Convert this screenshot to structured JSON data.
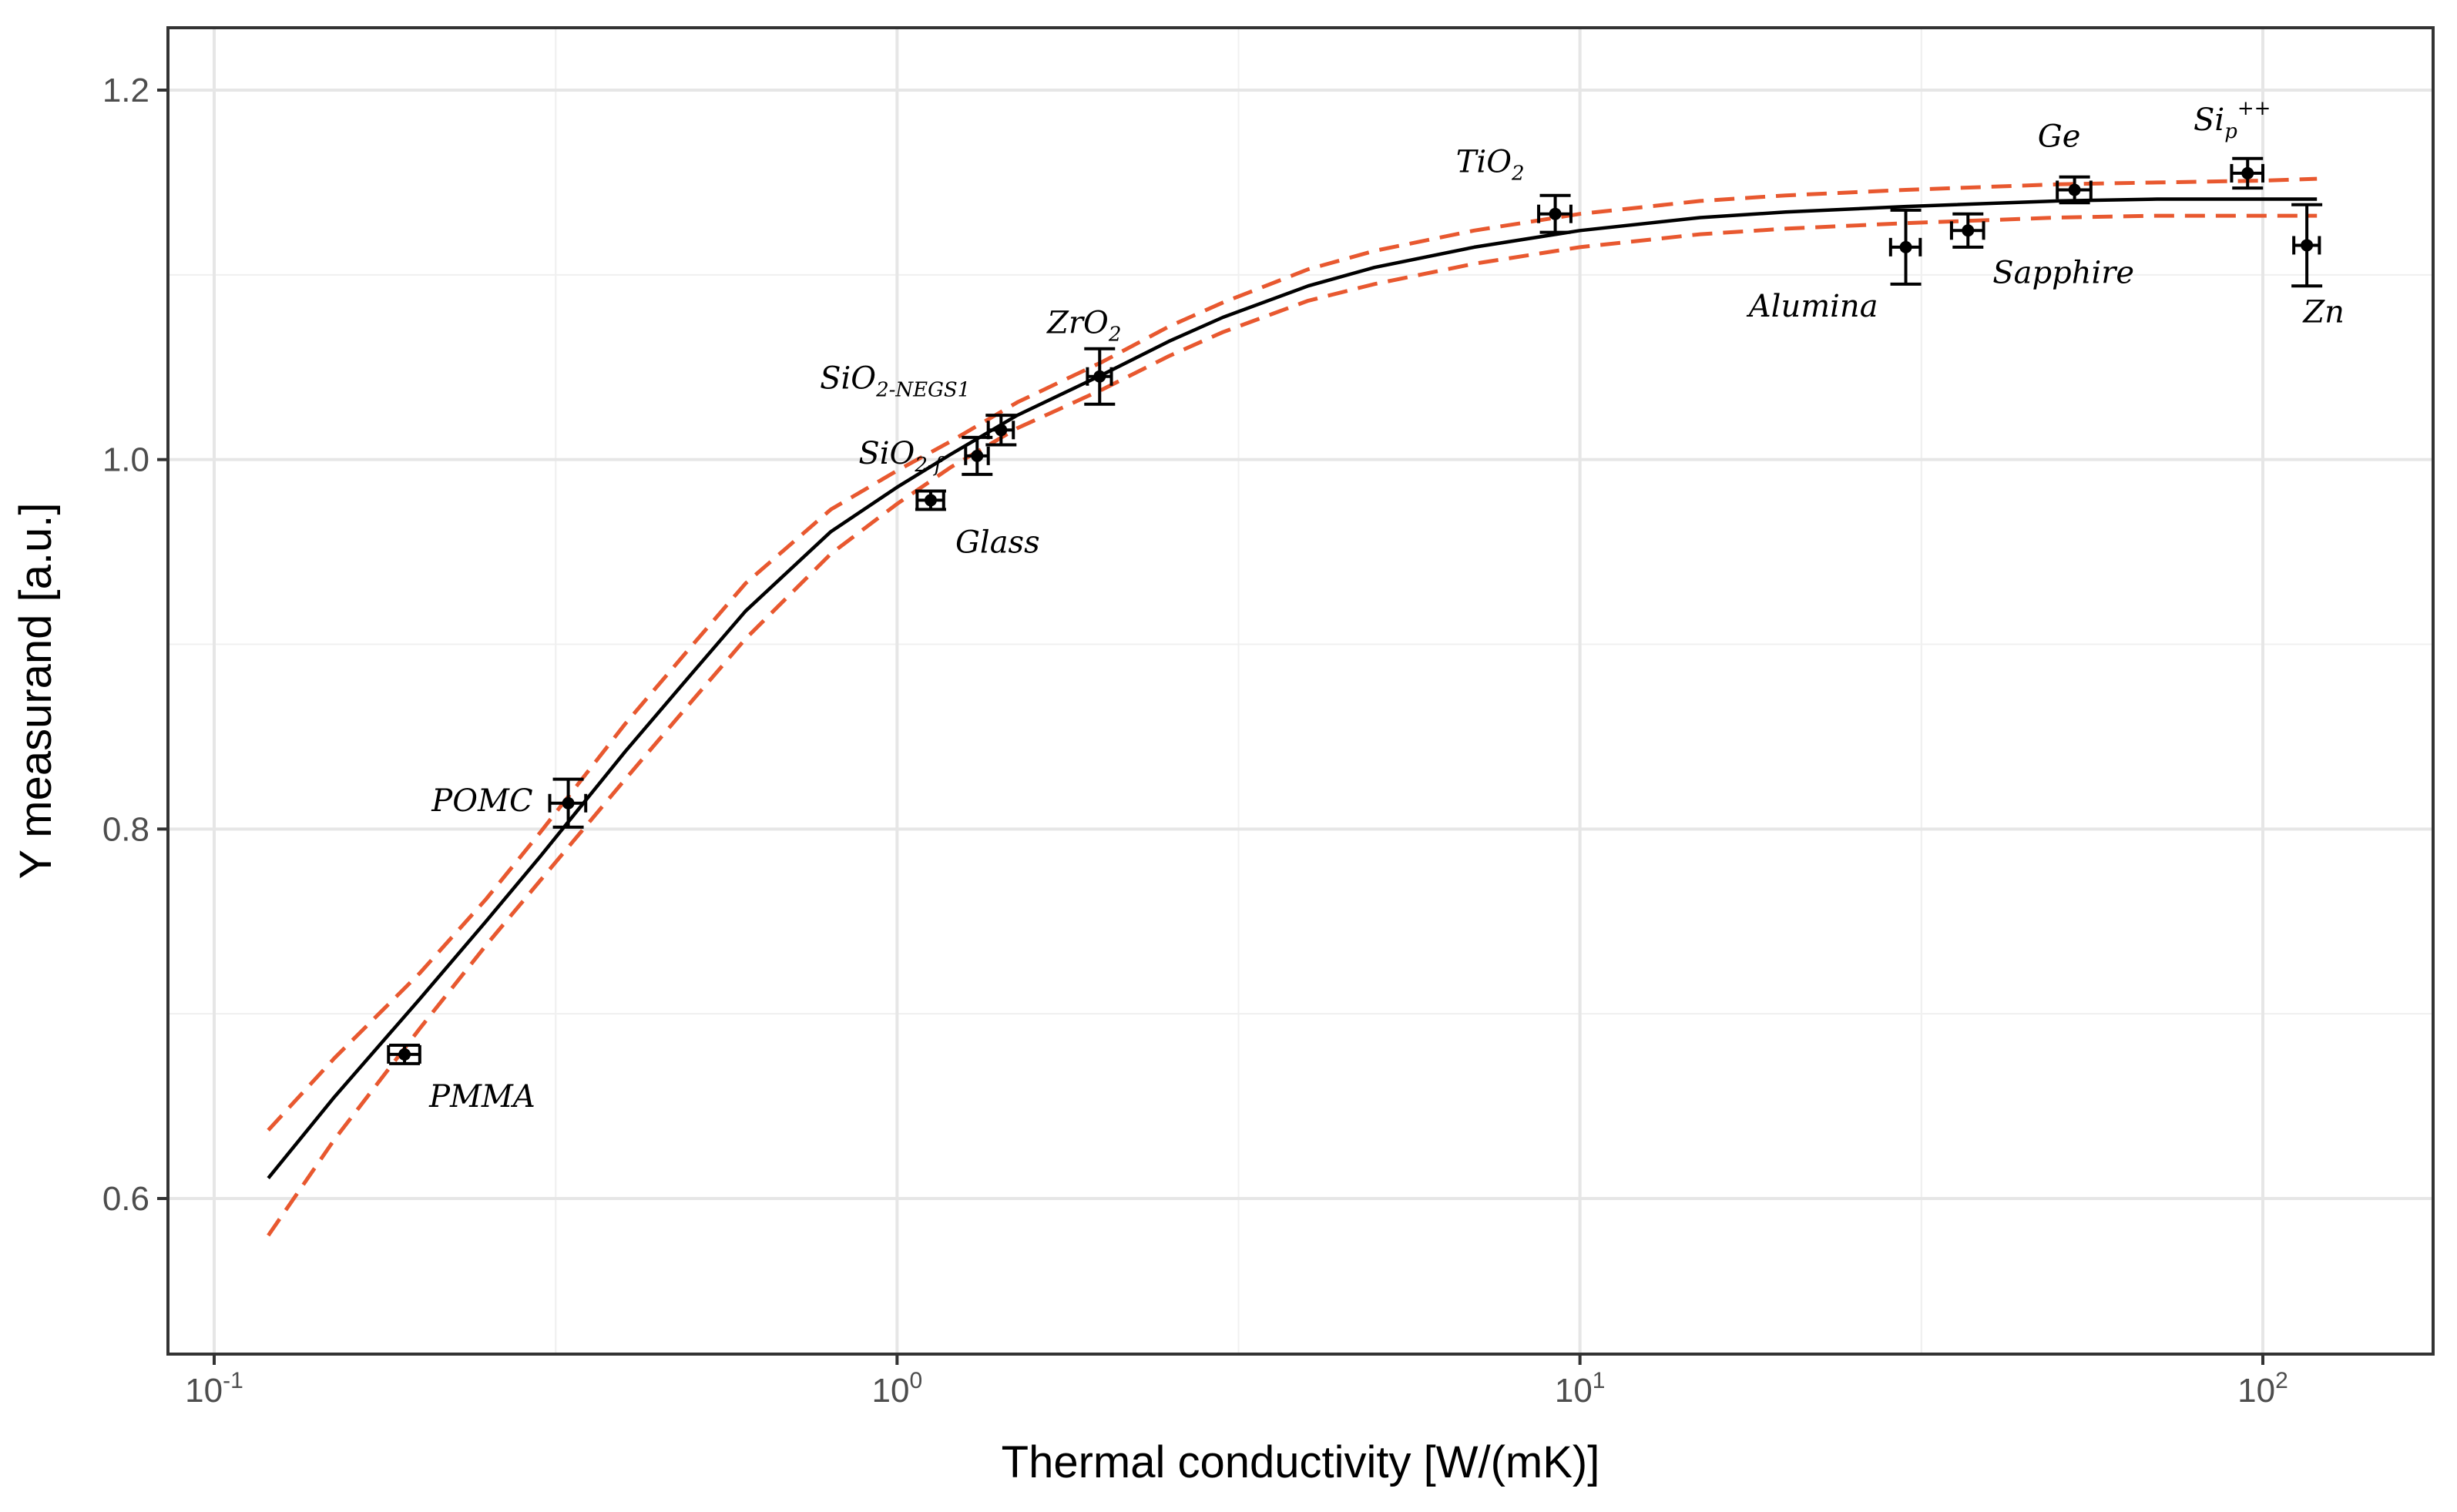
{
  "chart_data": {
    "type": "scatter",
    "title": "",
    "xlabel": "Thermal conductivity [W/(mK)]",
    "ylabel": "Y measurand [a.u.]",
    "x_scale": "log10",
    "xlim": [
      0.1,
      160
    ],
    "ylim": [
      0.525,
      1.24
    ],
    "x_ticks": [
      {
        "value": 0.1,
        "base": "10",
        "exp": "-1"
      },
      {
        "value": 1,
        "base": "10",
        "exp": "0"
      },
      {
        "value": 10,
        "base": "10",
        "exp": "1"
      },
      {
        "value": 100,
        "base": "10",
        "exp": "2"
      }
    ],
    "y_ticks": [
      {
        "value": 0.6,
        "label": "0.6"
      },
      {
        "value": 0.8,
        "label": "0.8"
      },
      {
        "value": 1.0,
        "label": "1.0"
      },
      {
        "value": 1.2,
        "label": "1.2"
      }
    ],
    "grid": true,
    "legend": "none",
    "points": [
      {
        "name": "PMMA",
        "label": "PMMA",
        "sub": "",
        "sup": "",
        "x": 0.19,
        "y": 0.678,
        "xerr": 0.01,
        "yerr": 0.005,
        "label_pos": "below-right"
      },
      {
        "name": "POMC",
        "label": "POMC",
        "sub": "",
        "sup": "",
        "x": 0.33,
        "y": 0.814,
        "xerr": 0.02,
        "yerr": 0.013,
        "label_pos": "left"
      },
      {
        "name": "Glass",
        "label": "Glass",
        "sub": "",
        "sup": "",
        "x": 1.12,
        "y": 0.978,
        "xerr": 0.05,
        "yerr": 0.005,
        "label_pos": "below-right"
      },
      {
        "name": "SiO2-f",
        "label": "SiO",
        "sub": "2-f",
        "sup": "",
        "x": 1.31,
        "y": 1.002,
        "xerr": 0.05,
        "yerr": 0.01,
        "label_pos": "left"
      },
      {
        "name": "SiO2-NEGS1",
        "label": "SiO",
        "sub": "2-NEGS1",
        "sup": "",
        "x": 1.42,
        "y": 1.016,
        "xerr": 0.06,
        "yerr": 0.008,
        "label_pos": "above-left"
      },
      {
        "name": "ZrO2",
        "label": "ZrO",
        "sub": "2",
        "sup": "",
        "x": 1.98,
        "y": 1.045,
        "xerr": 0.08,
        "yerr": 0.015,
        "label_pos": "above"
      },
      {
        "name": "TiO2",
        "label": "TiO",
        "sub": "2",
        "sup": "",
        "x": 9.2,
        "y": 1.133,
        "xerr": 0.5,
        "yerr": 0.01,
        "label_pos": "above-left"
      },
      {
        "name": "Alumina",
        "label": "Alumina",
        "sub": "",
        "sup": "",
        "x": 30,
        "y": 1.115,
        "xerr": 1.5,
        "yerr": 0.02,
        "label_pos": "below-left"
      },
      {
        "name": "Sapphire",
        "label": "Sapphire",
        "sub": "",
        "sup": "",
        "x": 37,
        "y": 1.124,
        "xerr": 2,
        "yerr": 0.009,
        "label_pos": "below-right"
      },
      {
        "name": "Ge",
        "label": "Ge",
        "sub": "",
        "sup": "",
        "x": 53,
        "y": 1.146,
        "xerr": 3,
        "yerr": 0.007,
        "label_pos": "above"
      },
      {
        "name": "Sip++",
        "label": "Si",
        "sub": "p",
        "sup": "++",
        "x": 95,
        "y": 1.155,
        "xerr": 5,
        "yerr": 0.008,
        "label_pos": "above"
      },
      {
        "name": "Zn",
        "label": "Zn",
        "sub": "",
        "sup": "",
        "x": 116,
        "y": 1.116,
        "xerr": 5,
        "yerr": 0.022,
        "label_pos": "below"
      }
    ],
    "fit_curve": {
      "name": "fit",
      "color": "#000000",
      "x": [
        0.12,
        0.15,
        0.2,
        0.25,
        0.3,
        0.4,
        0.5,
        0.6,
        0.8,
        1.0,
        1.2,
        1.5,
        2.0,
        2.5,
        3.0,
        4.0,
        5.0,
        7.0,
        10,
        15,
        20,
        30,
        50,
        70,
        100,
        120
      ],
      "y": [
        0.611,
        0.655,
        0.708,
        0.75,
        0.785,
        0.842,
        0.884,
        0.918,
        0.961,
        0.985,
        1.003,
        1.024,
        1.046,
        1.064,
        1.077,
        1.094,
        1.104,
        1.115,
        1.124,
        1.131,
        1.134,
        1.137,
        1.14,
        1.141,
        1.141,
        1.141
      ]
    },
    "confidence_bands": {
      "color": "#e8582f",
      "upper": {
        "x": [
          0.12,
          0.15,
          0.2,
          0.25,
          0.3,
          0.4,
          0.5,
          0.6,
          0.8,
          1.0,
          1.2,
          1.5,
          2.0,
          2.5,
          3.0,
          4.0,
          5.0,
          7.0,
          10,
          15,
          20,
          30,
          50,
          70,
          100,
          120
        ],
        "y": [
          0.637,
          0.676,
          0.722,
          0.762,
          0.798,
          0.857,
          0.899,
          0.933,
          0.973,
          0.994,
          1.01,
          1.031,
          1.053,
          1.072,
          1.085,
          1.103,
          1.113,
          1.124,
          1.133,
          1.14,
          1.143,
          1.146,
          1.149,
          1.15,
          1.151,
          1.152
        ]
      },
      "lower": {
        "x": [
          0.12,
          0.15,
          0.2,
          0.25,
          0.3,
          0.4,
          0.5,
          0.6,
          0.8,
          1.0,
          1.2,
          1.5,
          2.0,
          2.5,
          3.0,
          4.0,
          5.0,
          7.0,
          10,
          15,
          20,
          30,
          50,
          70,
          100,
          120
        ],
        "y": [
          0.58,
          0.632,
          0.692,
          0.737,
          0.772,
          0.827,
          0.869,
          0.903,
          0.949,
          0.976,
          0.996,
          1.017,
          1.038,
          1.056,
          1.069,
          1.086,
          1.095,
          1.106,
          1.115,
          1.122,
          1.125,
          1.128,
          1.131,
          1.132,
          1.132,
          1.132
        ]
      }
    }
  }
}
